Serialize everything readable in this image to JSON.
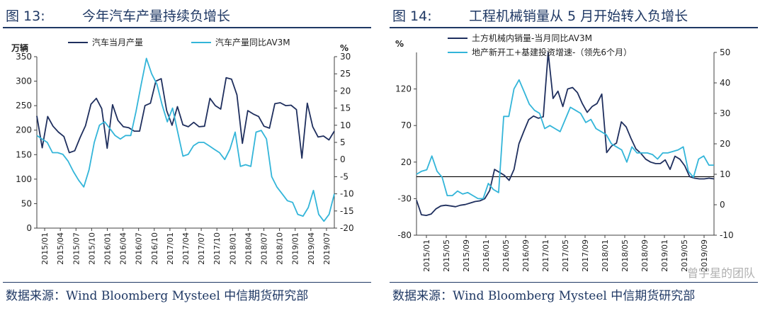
{
  "footer": {
    "watermark": "曾宇星的团队"
  },
  "chart_data": [
    {
      "type": "line",
      "title_num": "图 13:",
      "title": "今年汽车产量持续负增长",
      "source": "数据来源：Wind Bloomberg Mysteel 中信期货研究部",
      "left_unit": "万辆",
      "right_unit": "%",
      "left_ylim": [
        0,
        350
      ],
      "left_ticks": [
        0,
        50,
        100,
        150,
        200,
        250,
        300,
        350
      ],
      "right_ylim": [
        -20,
        30
      ],
      "right_ticks": [
        -20,
        -15,
        -10,
        -5,
        0,
        5,
        10,
        15,
        20,
        25,
        30
      ],
      "x_labels": [
        "2015/01",
        "2015/04",
        "2015/07",
        "2015/10",
        "2016/01",
        "2016/04",
        "2016/07",
        "2016/10",
        "2017/01",
        "2017/04",
        "2017/07",
        "2017/10",
        "2018/01",
        "2018/04",
        "2018/07",
        "2018/10",
        "2019/01",
        "2019/04",
        "2019/07"
      ],
      "colors": {
        "axis": "#404040",
        "series1": "#1f2f5e",
        "series2": "#33b5d9"
      },
      "series": [
        {
          "name": "汽车当月产量",
          "axis": "left",
          "values": [
            229,
            164,
            228,
            208,
            196,
            187,
            154,
            158,
            185,
            209,
            253,
            265,
            244,
            163,
            252,
            220,
            207,
            205,
            198,
            198,
            250,
            255,
            300,
            305,
            240,
            210,
            248,
            211,
            207,
            216,
            207,
            208,
            265,
            250,
            243,
            307,
            304,
            272,
            173,
            240,
            233,
            228,
            208,
            204,
            254,
            256,
            250,
            251,
            242,
            143,
            255,
            207,
            186,
            188,
            180,
            198
          ]
        },
        {
          "name": "汽车产量同比AV3M",
          "axis": "right",
          "values": [
            7,
            6,
            5,
            2,
            2,
            1.5,
            -0.5,
            -3.5,
            -6,
            -8,
            -3,
            5,
            10,
            11,
            9,
            7,
            6,
            7,
            7,
            14,
            22,
            29.5,
            25,
            22,
            16,
            11,
            15,
            8,
            1,
            1.5,
            4,
            5,
            5,
            4,
            3,
            2,
            0,
            3,
            8,
            -2,
            -1.5,
            -2,
            8,
            8.5,
            6,
            -5,
            -8,
            -10,
            -12,
            -12.5,
            -16,
            -16.5,
            -14,
            -9,
            -16,
            -18,
            -16,
            -10
          ]
        }
      ]
    },
    {
      "type": "line",
      "title_num": "图 14:",
      "title": "工程机械销量从 5 月开始转入负增长",
      "source": "数据来源：Wind Bloomberg Mysteel 中信期货研究部",
      "left_unit": "%",
      "right_unit": "",
      "left_ylim": [
        -80,
        170
      ],
      "left_ticks": [
        -80,
        -30,
        20,
        70,
        120
      ],
      "right_ylim": [
        -10,
        50
      ],
      "right_ticks": [
        -10,
        0,
        10,
        20,
        30,
        40,
        50
      ],
      "x_labels": [
        "2015/01",
        "2015/05",
        "2015/09",
        "2016/01",
        "2016/05",
        "2016/09",
        "2017/01",
        "2017/05",
        "2017/09",
        "2018/01",
        "2018/05",
        "2018/09",
        "2019/01",
        "2019/05",
        "2019/09"
      ],
      "colors": {
        "axis": "#404040",
        "series1": "#1f2f5e",
        "series2": "#33b5d9"
      },
      "series": [
        {
          "name": "土方机械内销量-当月同比AV3M",
          "axis": "left",
          "values": [
            -32,
            -52,
            -53,
            -51,
            -44,
            -40,
            -39,
            -40,
            -41,
            -39,
            -38,
            -36,
            -34,
            -33,
            -30,
            -19,
            10,
            6,
            2,
            -5,
            10,
            45,
            62,
            78,
            83,
            80,
            82,
            170,
            107,
            117,
            96,
            120,
            122,
            115,
            100,
            88,
            96,
            100,
            113,
            33,
            42,
            46,
            75,
            68,
            52,
            38,
            32,
            24,
            20,
            18,
            18,
            23,
            10,
            28,
            24,
            15,
            0,
            -2,
            -3,
            -3,
            -2,
            -3
          ]
        },
        {
          "name": "地产新开工+基建投资增速-（领先6个月）",
          "axis": "right",
          "values": [
            10,
            11,
            11.5,
            16,
            11,
            9,
            3,
            3,
            4.5,
            3.5,
            4,
            3,
            2,
            2,
            7,
            5,
            4,
            29,
            29,
            38,
            41,
            37,
            33,
            31,
            30,
            25,
            26,
            25,
            24,
            28,
            32,
            31,
            30,
            27,
            28,
            25,
            24,
            23,
            20,
            19,
            18,
            14,
            19,
            17,
            17,
            17,
            16.5,
            15,
            17,
            17,
            17.5,
            18,
            19,
            11,
            9,
            15,
            16,
            13,
            13
          ]
        }
      ]
    }
  ]
}
